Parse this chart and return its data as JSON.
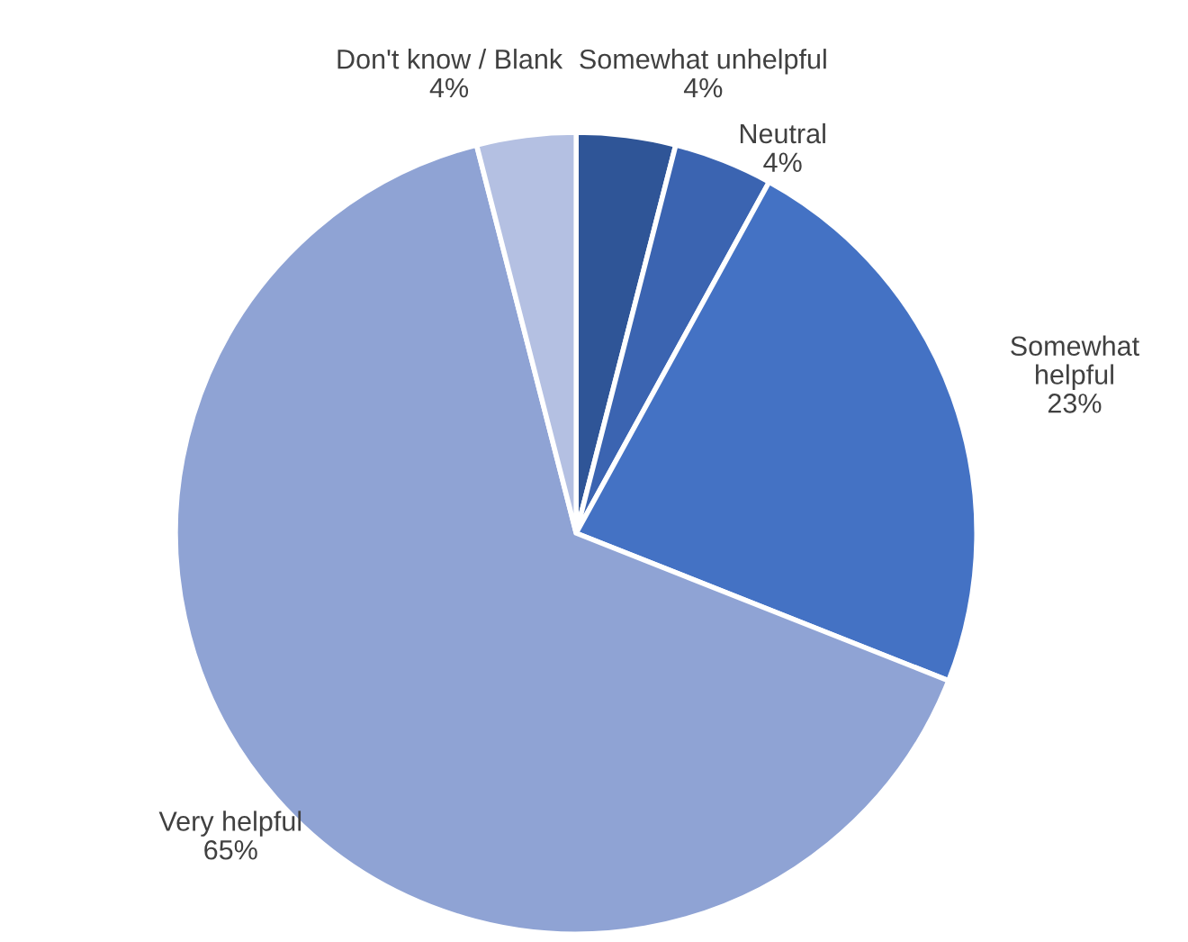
{
  "chart_data": {
    "type": "pie",
    "categories": [
      "Somewhat unhelpful",
      "Neutral",
      "Somewhat helpful",
      "Very helpful",
      "Don't know / Blank"
    ],
    "values": [
      4,
      4,
      23,
      65,
      4
    ],
    "colors": [
      "#2f5597",
      "#3b64b1",
      "#4472c4",
      "#8fa3d4",
      "#b4c0e2"
    ],
    "value_labels": [
      "4%",
      "4%",
      "23%",
      "65%",
      "4%"
    ]
  }
}
